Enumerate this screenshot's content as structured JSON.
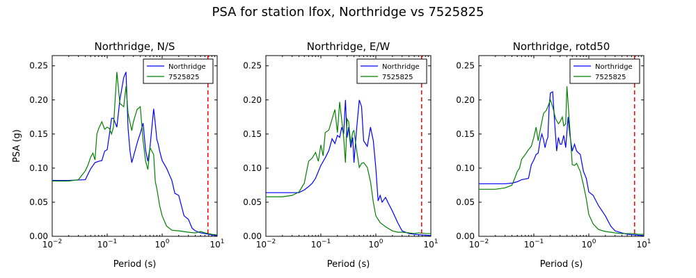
{
  "suptitle": "PSA for station lfox, Northridge vs 7525825",
  "colors": {
    "series1": "#0000ff",
    "series2": "#008000",
    "cutoff": "#ff0000"
  },
  "chart_data": [
    {
      "type": "line",
      "title": "Northridge, N/S",
      "xlabel": "Period (s)",
      "ylabel": "PSA (g)",
      "xscale": "log",
      "xlim": [
        0.01,
        10
      ],
      "ylim": [
        0,
        0.265
      ],
      "xtick_labels": [
        "10^-2",
        "10^-1",
        "10^0",
        "10^1"
      ],
      "yticks": [
        "0.00",
        "0.05",
        "0.10",
        "0.15",
        "0.20",
        "0.25"
      ],
      "legend_position": "top-right",
      "vline_x": 6.8,
      "series": [
        {
          "name": "Northridge",
          "x": [
            0.01,
            0.02,
            0.04,
            0.05,
            0.06,
            0.07,
            0.08,
            0.09,
            0.1,
            0.11,
            0.12,
            0.13,
            0.15,
            0.17,
            0.2,
            0.22,
            0.24,
            0.26,
            0.28,
            0.32,
            0.36,
            0.4,
            0.45,
            0.5,
            0.55,
            0.6,
            0.7,
            0.75,
            0.8,
            0.85,
            0.9,
            1.0,
            1.2,
            1.5,
            1.7,
            2.0,
            2.5,
            3.0,
            3.5,
            4.0,
            5.0,
            6.0,
            8.0,
            10.0
          ],
          "y": [
            0.082,
            0.082,
            0.083,
            0.099,
            0.108,
            0.11,
            0.111,
            0.125,
            0.127,
            0.15,
            0.173,
            0.173,
            0.16,
            0.2,
            0.233,
            0.241,
            0.158,
            0.125,
            0.108,
            0.125,
            0.14,
            0.151,
            0.166,
            0.126,
            0.11,
            0.13,
            0.187,
            0.165,
            0.142,
            0.135,
            0.125,
            0.111,
            0.1,
            0.082,
            0.063,
            0.06,
            0.03,
            0.025,
            0.012,
            0.008,
            0.005,
            0.004,
            0.002,
            0.001
          ]
        },
        {
          "name": "7525825",
          "x": [
            0.01,
            0.02,
            0.03,
            0.04,
            0.045,
            0.05,
            0.055,
            0.06,
            0.065,
            0.07,
            0.08,
            0.09,
            0.1,
            0.11,
            0.12,
            0.13,
            0.15,
            0.17,
            0.2,
            0.22,
            0.24,
            0.26,
            0.28,
            0.3,
            0.35,
            0.4,
            0.45,
            0.5,
            0.55,
            0.6,
            0.7,
            0.75,
            0.8,
            0.9,
            1.0,
            1.2,
            1.5,
            2.0,
            3.0,
            4.0,
            5.0,
            6.0,
            8.0,
            10.0
          ],
          "y": [
            0.081,
            0.081,
            0.083,
            0.096,
            0.105,
            0.116,
            0.122,
            0.112,
            0.15,
            0.158,
            0.168,
            0.157,
            0.16,
            0.158,
            0.15,
            0.16,
            0.241,
            0.195,
            0.19,
            0.22,
            0.18,
            0.167,
            0.155,
            0.168,
            0.186,
            0.19,
            0.14,
            0.11,
            0.098,
            0.13,
            0.12,
            0.08,
            0.07,
            0.045,
            0.03,
            0.015,
            0.009,
            0.008,
            0.006,
            0.005,
            0.007,
            0.005,
            0.003,
            0.002
          ]
        }
      ]
    },
    {
      "type": "line",
      "title": "Northridge, E/W",
      "xlabel": "Period (s)",
      "ylabel": "",
      "xscale": "log",
      "xlim": [
        0.01,
        10
      ],
      "ylim": [
        0,
        0.265
      ],
      "xtick_labels": [
        "10^-2",
        "10^-1",
        "10^0",
        "10^1"
      ],
      "yticks": [
        "0.00",
        "0.05",
        "0.10",
        "0.15",
        "0.20",
        "0.25"
      ],
      "legend_position": "top-right",
      "vline_x": 6.8,
      "series": [
        {
          "name": "Northridge",
          "x": [
            0.01,
            0.02,
            0.03,
            0.04,
            0.05,
            0.06,
            0.07,
            0.08,
            0.09,
            0.1,
            0.12,
            0.14,
            0.16,
            0.18,
            0.2,
            0.22,
            0.24,
            0.26,
            0.28,
            0.3,
            0.32,
            0.35,
            0.38,
            0.4,
            0.45,
            0.5,
            0.55,
            0.6,
            0.7,
            0.8,
            0.9,
            1.0,
            1.1,
            1.2,
            1.3,
            1.5,
            1.7,
            2.0,
            2.5,
            3.0,
            4.0,
            5.0,
            7.0,
            10.0
          ],
          "y": [
            0.064,
            0.064,
            0.064,
            0.064,
            0.068,
            0.073,
            0.078,
            0.085,
            0.095,
            0.104,
            0.115,
            0.126,
            0.143,
            0.136,
            0.148,
            0.145,
            0.16,
            0.15,
            0.2,
            0.145,
            0.16,
            0.13,
            0.145,
            0.108,
            0.16,
            0.2,
            0.19,
            0.14,
            0.132,
            0.16,
            0.14,
            0.1,
            0.052,
            0.06,
            0.05,
            0.057,
            0.048,
            0.037,
            0.02,
            0.008,
            0.004,
            0.003,
            0.002,
            0.001
          ]
        },
        {
          "name": "7525825",
          "x": [
            0.01,
            0.02,
            0.03,
            0.04,
            0.05,
            0.055,
            0.06,
            0.07,
            0.08,
            0.09,
            0.1,
            0.11,
            0.12,
            0.14,
            0.16,
            0.18,
            0.2,
            0.22,
            0.24,
            0.26,
            0.28,
            0.3,
            0.32,
            0.35,
            0.38,
            0.4,
            0.45,
            0.5,
            0.55,
            0.6,
            0.7,
            0.8,
            0.9,
            1.0,
            1.2,
            1.5,
            2.0,
            2.5,
            3.0,
            4.0,
            5.0,
            6.0,
            8.0,
            10.0
          ],
          "y": [
            0.058,
            0.058,
            0.06,
            0.065,
            0.078,
            0.095,
            0.11,
            0.115,
            0.123,
            0.11,
            0.134,
            0.118,
            0.152,
            0.156,
            0.172,
            0.186,
            0.152,
            0.197,
            0.17,
            0.145,
            0.108,
            0.172,
            0.168,
            0.135,
            0.153,
            0.155,
            0.125,
            0.101,
            0.107,
            0.108,
            0.101,
            0.08,
            0.05,
            0.03,
            0.02,
            0.014,
            0.008,
            0.006,
            0.006,
            0.005,
            0.004,
            0.005,
            0.004,
            0.004
          ]
        }
      ]
    },
    {
      "type": "line",
      "title": "Northridge, rotd50",
      "xlabel": "Period (s)",
      "ylabel": "",
      "xscale": "log",
      "xlim": [
        0.01,
        10
      ],
      "ylim": [
        0,
        0.265
      ],
      "xtick_labels": [
        "10^-2",
        "10^-1",
        "10^0",
        "10^1"
      ],
      "yticks": [
        "0.00",
        "0.05",
        "0.10",
        "0.15",
        "0.20",
        "0.25"
      ],
      "legend_position": "top-right",
      "vline_x": 6.8,
      "series": [
        {
          "name": "Northridge",
          "x": [
            0.01,
            0.02,
            0.03,
            0.04,
            0.05,
            0.06,
            0.07,
            0.08,
            0.09,
            0.1,
            0.11,
            0.12,
            0.13,
            0.14,
            0.15,
            0.16,
            0.17,
            0.18,
            0.19,
            0.2,
            0.22,
            0.24,
            0.26,
            0.28,
            0.3,
            0.32,
            0.35,
            0.38,
            0.42,
            0.45,
            0.5,
            0.55,
            0.6,
            0.7,
            0.8,
            0.9,
            1.0,
            1.2,
            1.5,
            2.0,
            2.5,
            3.0,
            4.0,
            5.0,
            7.0,
            10.0
          ],
          "y": [
            0.077,
            0.077,
            0.077,
            0.078,
            0.08,
            0.083,
            0.084,
            0.085,
            0.105,
            0.112,
            0.12,
            0.122,
            0.14,
            0.15,
            0.142,
            0.13,
            0.14,
            0.145,
            0.19,
            0.21,
            0.212,
            0.165,
            0.125,
            0.145,
            0.135,
            0.135,
            0.148,
            0.13,
            0.175,
            0.15,
            0.125,
            0.135,
            0.125,
            0.12,
            0.095,
            0.085,
            0.065,
            0.06,
            0.045,
            0.03,
            0.015,
            0.008,
            0.005,
            0.003,
            0.002,
            0.001
          ]
        },
        {
          "name": "7525825",
          "x": [
            0.01,
            0.02,
            0.03,
            0.04,
            0.045,
            0.05,
            0.055,
            0.06,
            0.07,
            0.08,
            0.09,
            0.1,
            0.11,
            0.12,
            0.13,
            0.15,
            0.17,
            0.2,
            0.22,
            0.25,
            0.28,
            0.3,
            0.33,
            0.35,
            0.38,
            0.4,
            0.45,
            0.5,
            0.55,
            0.6,
            0.7,
            0.8,
            0.9,
            1.0,
            1.2,
            1.5,
            2.0,
            2.5,
            3.0,
            4.0,
            5.0,
            6.0,
            8.0,
            10.0
          ],
          "y": [
            0.069,
            0.069,
            0.071,
            0.075,
            0.085,
            0.095,
            0.1,
            0.113,
            0.12,
            0.127,
            0.132,
            0.145,
            0.16,
            0.14,
            0.155,
            0.18,
            0.185,
            0.2,
            0.19,
            0.172,
            0.165,
            0.168,
            0.175,
            0.162,
            0.165,
            0.22,
            0.16,
            0.105,
            0.104,
            0.107,
            0.095,
            0.075,
            0.055,
            0.032,
            0.018,
            0.01,
            0.007,
            0.006,
            0.005,
            0.004,
            0.004,
            0.004,
            0.003,
            0.003
          ]
        }
      ]
    }
  ]
}
